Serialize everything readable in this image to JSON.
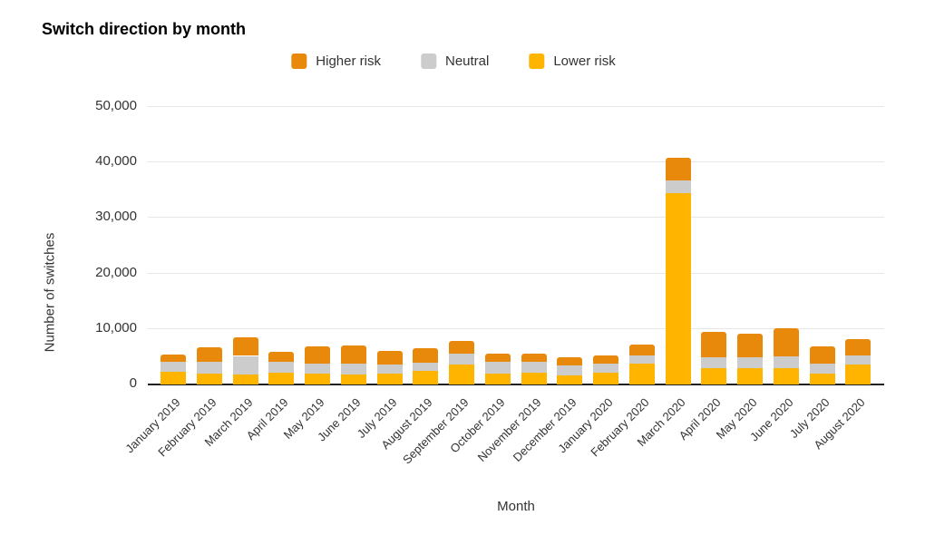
{
  "title": "Switch direction by month",
  "chart_data": {
    "type": "bar",
    "stacked": true,
    "title": "Switch direction by month",
    "xlabel": "Month",
    "ylabel": "Number of switches",
    "ylim": [
      0,
      50000
    ],
    "y_tick_step": 10000,
    "y_ticks": [
      "0",
      "10,000",
      "20,000",
      "30,000",
      "40,000",
      "50,000"
    ],
    "grid": true,
    "legend_position": "top",
    "categories": [
      "January 2019",
      "February 2019",
      "March 2019",
      "April 2019",
      "May 2019",
      "June 2019",
      "July 2019",
      "August 2019",
      "September 2019",
      "October 2019",
      "November 2019",
      "December 2019",
      "January 2020",
      "February 2020",
      "March 2020",
      "April 2020",
      "May 2020",
      "June 2020",
      "July 2020",
      "August 2020"
    ],
    "series": [
      {
        "name": "Higher risk",
        "color": "#e8890c",
        "values": [
          1250,
          2600,
          3300,
          1850,
          3150,
          3300,
          2550,
          2500,
          2200,
          1450,
          1400,
          1500,
          1600,
          2000,
          4050,
          4550,
          4250,
          5200,
          3100,
          2950
        ]
      },
      {
        "name": "Neutral",
        "color": "#cccccc",
        "values": [
          1850,
          2200,
          3400,
          2000,
          1800,
          1950,
          1650,
          1550,
          2000,
          2150,
          2050,
          1750,
          1650,
          1500,
          2350,
          1900,
          1850,
          2000,
          1850,
          1550
        ]
      },
      {
        "name": "Lower risk",
        "color": "#ffb400",
        "values": [
          2300,
          1900,
          1750,
          2050,
          1950,
          1800,
          1900,
          2450,
          3600,
          1950,
          2050,
          1700,
          2050,
          3700,
          34400,
          3000,
          3000,
          3000,
          1950,
          3650
        ]
      }
    ],
    "colors": {
      "gridline": "#e6e6e6",
      "axis_line": "#212121",
      "text": "#333333",
      "title_text": "#000000"
    }
  }
}
